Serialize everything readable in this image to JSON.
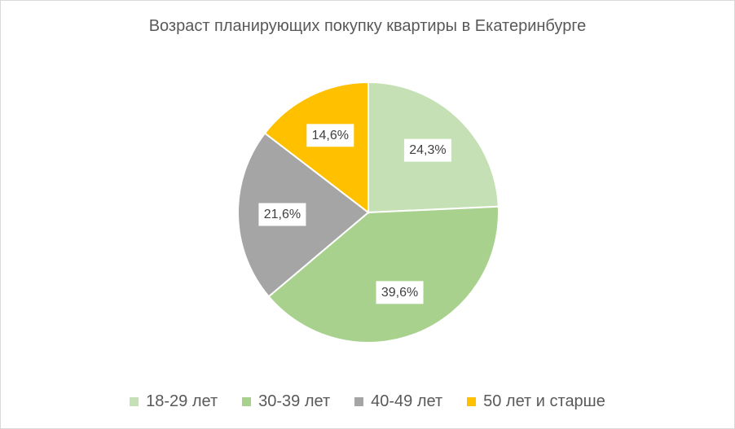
{
  "chart_data": {
    "type": "pie",
    "title": "Возраст планирующих покупку квартиры в Екатеринбурге",
    "categories": [
      "18-29 лет",
      "30-39 лет",
      "40-49 лет",
      "50 лет и старше"
    ],
    "values": [
      24.3,
      39.6,
      21.6,
      14.6
    ],
    "labels": [
      "24,3%",
      "39,6%",
      "21,6%",
      "14,6%"
    ],
    "colors": [
      "#c5e0b4",
      "#a9d18e",
      "#a5a5a5",
      "#ffc000"
    ],
    "legend_position": "bottom"
  }
}
